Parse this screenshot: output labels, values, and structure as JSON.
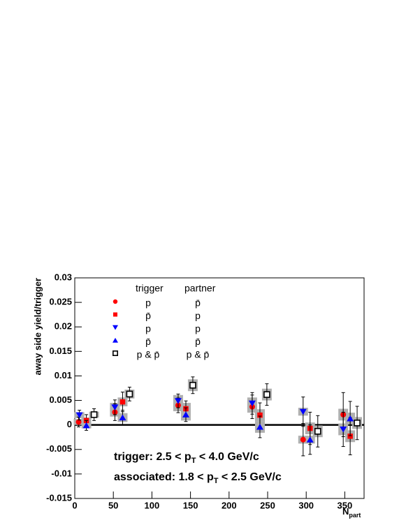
{
  "chart_data": {
    "type": "scatter",
    "y_label": "away side yield/trigger",
    "x_label": {
      "main": "N",
      "sub": "part"
    },
    "legend_headers": [
      "trigger",
      "partner"
    ],
    "annotations": [
      [
        "trigger: 2.5 < p",
        "T",
        " < 4.0 GeV/c"
      ],
      [
        "associated: 1.8 < p",
        "T",
        " < 2.5 GeV/c"
      ]
    ],
    "xlim": [
      0,
      375
    ],
    "ylim": [
      -0.015,
      0.03
    ],
    "xticks": [
      0,
      50,
      100,
      150,
      200,
      250,
      300,
      350
    ],
    "yticks": [
      -0.015,
      -0.01,
      -0.005,
      0,
      0.005,
      0.01,
      0.015,
      0.02,
      0.025,
      0.03
    ],
    "series": [
      {
        "trigger": "p",
        "partner": "p̄",
        "marker": "circle",
        "color": "#ff0000",
        "x": [
          5,
          52,
          134,
          230,
          296,
          348
        ],
        "values": [
          0.0006,
          0.0026,
          0.004,
          0.0037,
          -0.003,
          0.0021
        ],
        "errors": [
          0.001,
          0.0017,
          0.0015,
          0.0024,
          0.0033,
          0.0045
        ],
        "sys": [
          0.0006,
          0.0009,
          0.0012,
          0.0012,
          0.0008,
          0.0012
        ]
      },
      {
        "trigger": "p̄",
        "partner": "p",
        "marker": "square",
        "color": "#ff0000",
        "x": [
          15,
          62,
          144,
          240,
          305,
          357
        ],
        "values": [
          0.0009,
          0.0047,
          0.0033,
          0.002,
          -0.0007,
          -0.0023
        ],
        "errors": [
          0.0012,
          0.002,
          0.0016,
          0.0025,
          0.0033,
          0.0038
        ],
        "sys": [
          0.0006,
          0.0009,
          0.0012,
          0.0012,
          0.0012,
          0.0012
        ]
      },
      {
        "trigger": "p",
        "partner": "p",
        "marker": "triangle-down",
        "color": "#0000ff",
        "x": [
          6,
          52,
          134,
          230,
          296,
          348
        ],
        "values": [
          0.002,
          0.0036,
          0.0049,
          0.0044,
          0.0027,
          -0.0009
        ],
        "errors": [
          0.001,
          0.0015,
          0.0014,
          0.0022,
          0.003,
          0.0035
        ],
        "sys": [
          0.0006,
          0.0009,
          0.0012,
          0.0012,
          0.0008,
          0.0012
        ]
      },
      {
        "trigger": "p̄",
        "partner": "p̄",
        "marker": "triangle-up",
        "color": "#0000ff",
        "x": [
          15,
          62,
          144,
          240,
          305,
          357
        ],
        "values": [
          -0.0001,
          0.0015,
          0.0021,
          -0.0004,
          -0.003,
          0.0013
        ],
        "errors": [
          0.001,
          0.0015,
          0.0014,
          0.0022,
          0.003,
          0.0035
        ],
        "sys": [
          0.0006,
          0.0009,
          0.0012,
          0.0012,
          0.0008,
          0.0012
        ]
      },
      {
        "trigger": "p & p̄",
        "partner": "p & p̄",
        "marker": "open-square",
        "color": "#000000",
        "x": [
          25,
          71,
          153,
          249,
          315,
          366
        ],
        "values": [
          0.0021,
          0.0063,
          0.0081,
          0.0062,
          -0.0013,
          0.0004
        ],
        "errors": [
          0.0012,
          0.0014,
          0.0017,
          0.0022,
          0.0032,
          0.0034
        ],
        "sys": [
          0.0006,
          0.0009,
          0.0012,
          0.0012,
          0.0012,
          0.0012
        ]
      }
    ]
  }
}
